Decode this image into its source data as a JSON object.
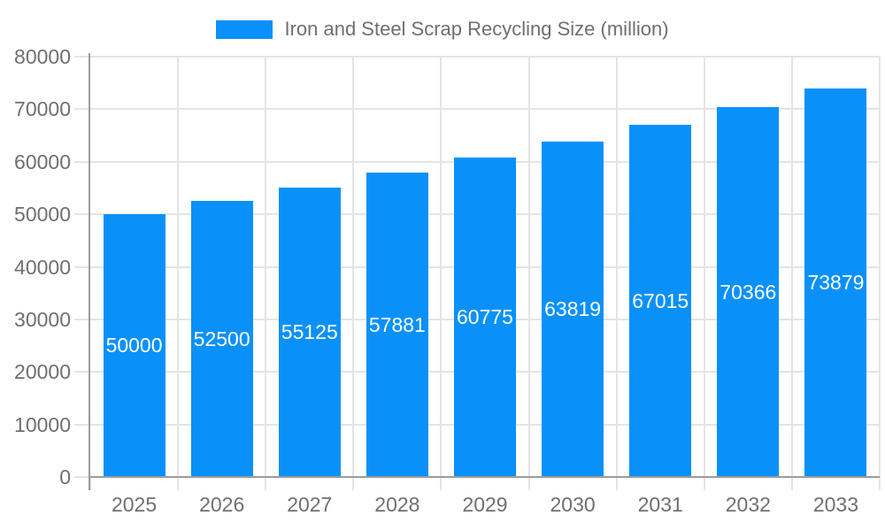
{
  "legend": {
    "label": "Iron and Steel Scrap Recycling Size (million)"
  },
  "chart_data": {
    "type": "bar",
    "title": "Iron and Steel Scrap Recycling Size (million)",
    "categories": [
      "2025",
      "2026",
      "2027",
      "2028",
      "2029",
      "2030",
      "2031",
      "2032",
      "2033"
    ],
    "values": [
      50000,
      52500,
      55125,
      57881,
      60775,
      63819,
      67015,
      70366,
      73879
    ],
    "xlabel": "",
    "ylabel": "",
    "ylim": [
      0,
      80000
    ],
    "y_ticks": [
      0,
      10000,
      20000,
      30000,
      40000,
      50000,
      60000,
      70000,
      80000
    ],
    "grid": true,
    "legend_position": "top-center",
    "bar_labels_inside": true,
    "colors": {
      "bar": "#0991f9",
      "bar_label": "#ffffff",
      "axis_text": "#6f6f6f",
      "grid": "#e4e4e4",
      "axis_line": "#9c9c9c",
      "background": "#ffffff"
    }
  }
}
